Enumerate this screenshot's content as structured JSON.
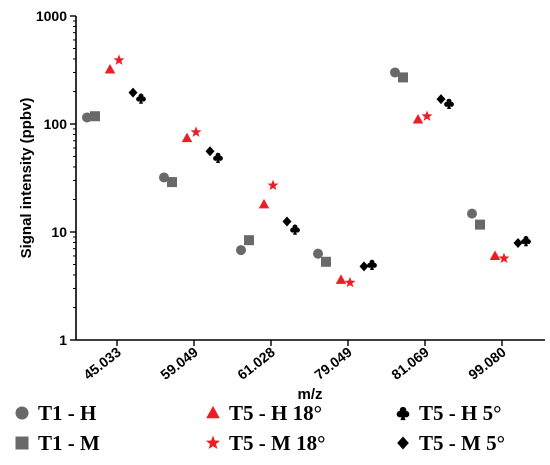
{
  "chart_data": {
    "type": "scatter",
    "yscale": "log",
    "ylim": [
      1,
      1000
    ],
    "ylabel": "Signal intensity (ppbv)",
    "xlabel": "m/z",
    "y_ticks": [
      "1",
      "10",
      "100",
      "1000"
    ],
    "categories": [
      "45.033",
      "59.049",
      "61.028",
      "79.049",
      "81.069",
      "99.080"
    ],
    "series": [
      {
        "name": "T1 - H",
        "marker": "circle",
        "color": "#696969",
        "values": [
          115,
          32,
          6.8,
          6.3,
          300,
          14.8
        ]
      },
      {
        "name": "T1 - M",
        "marker": "square",
        "color": "#696969",
        "values": [
          118,
          29,
          8.4,
          5.3,
          270,
          11.7
        ]
      },
      {
        "name": "T5 - H 18°",
        "marker": "triangle",
        "color": "#ee1c25",
        "values": [
          320,
          74,
          18,
          3.6,
          110,
          6.0
        ]
      },
      {
        "name": "T5 - M 18°",
        "marker": "star",
        "color": "#ee1c25",
        "values": [
          390,
          84,
          27,
          3.4,
          118,
          5.7
        ]
      },
      {
        "name": "T5 - M 5°",
        "marker": "diamond",
        "color": "#000000",
        "values": [
          195,
          56,
          12.5,
          4.8,
          170,
          7.9
        ]
      },
      {
        "name": "T5 - H 5°",
        "marker": "club",
        "color": "#000000",
        "values": [
          173,
          49,
          10.6,
          5.0,
          155,
          8.3
        ]
      }
    ]
  }
}
